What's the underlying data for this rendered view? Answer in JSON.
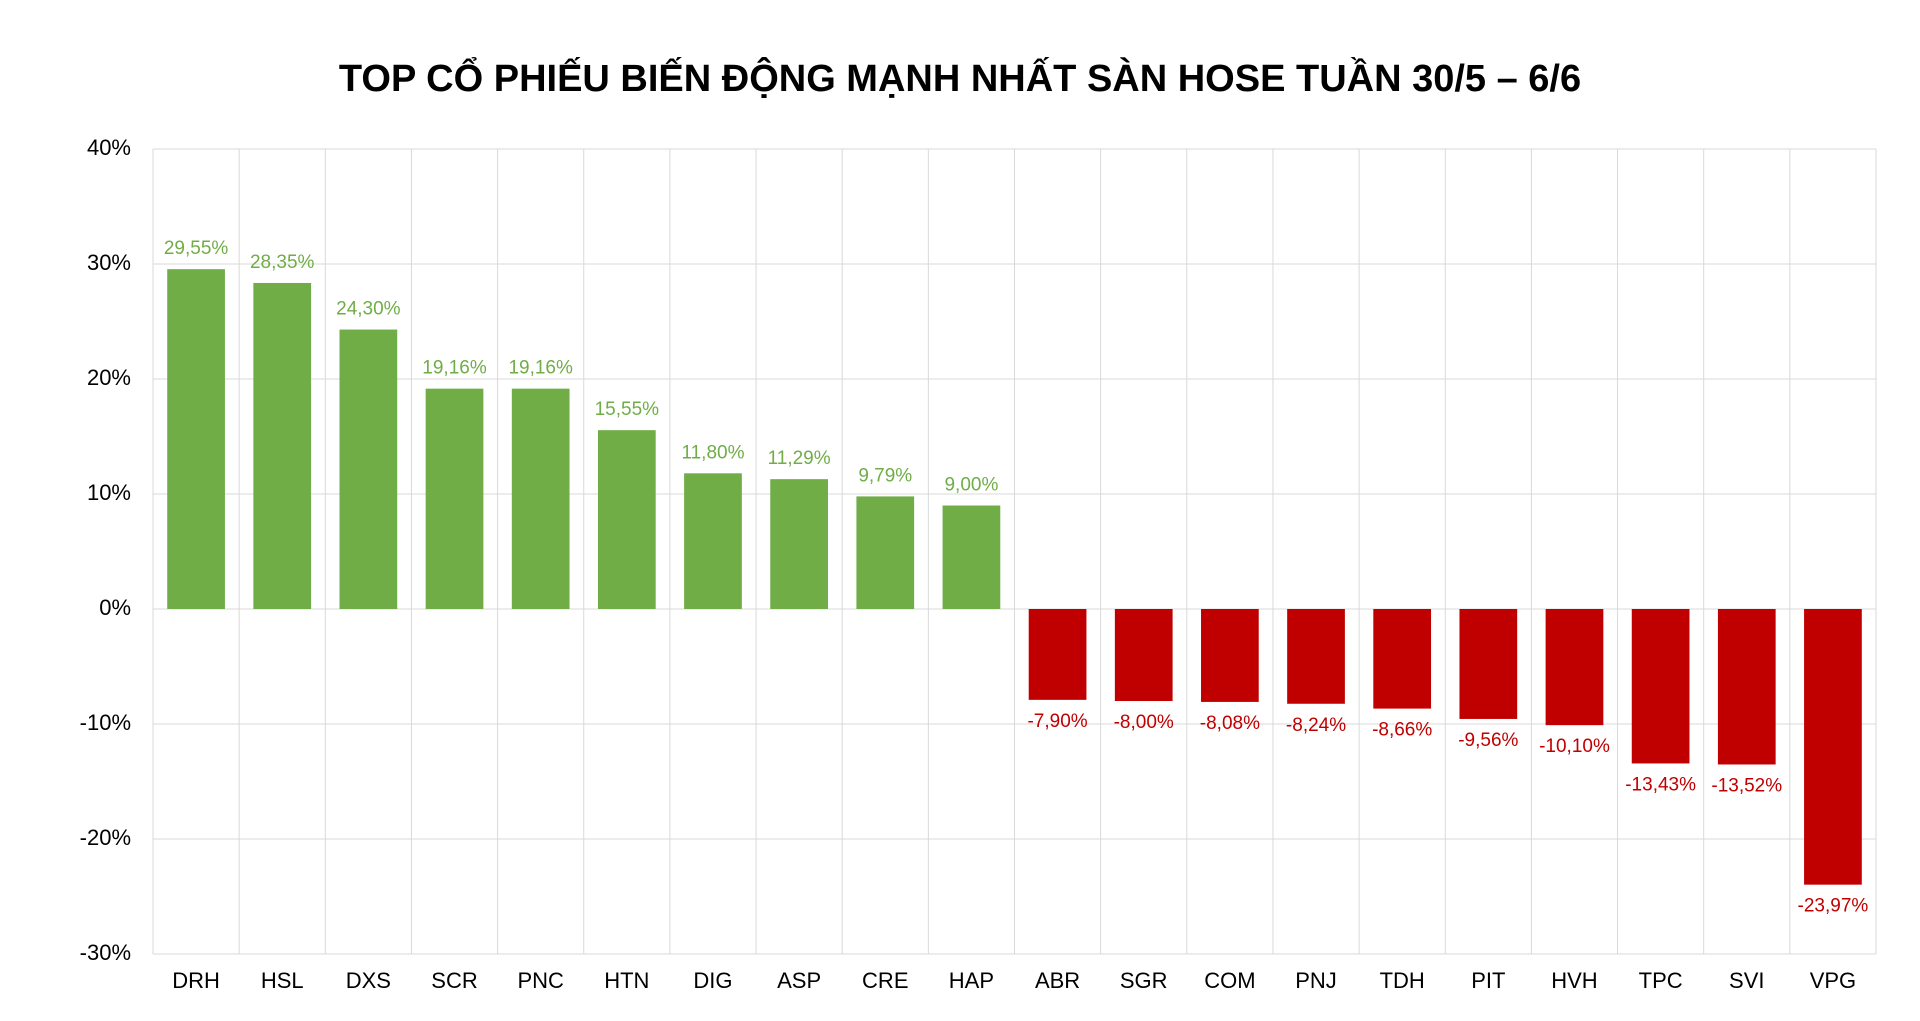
{
  "chart_data": {
    "type": "bar",
    "title": "TOP CỔ PHIẾU BIẾN ĐỘNG MẠNH NHẤT SÀN HOSE TUẦN 30/5 – 6/6",
    "categories": [
      "DRH",
      "HSL",
      "DXS",
      "SCR",
      "PNC",
      "HTN",
      "DIG",
      "ASP",
      "CRE",
      "HAP",
      "ABR",
      "SGR",
      "COM",
      "PNJ",
      "TDH",
      "PIT",
      "HVH",
      "TPC",
      "SVI",
      "VPG"
    ],
    "values": [
      29.55,
      28.35,
      24.3,
      19.16,
      19.16,
      15.55,
      11.8,
      11.29,
      9.79,
      9.0,
      -7.9,
      -8.0,
      -8.08,
      -8.24,
      -8.66,
      -9.56,
      -10.1,
      -13.43,
      -13.52,
      -23.97
    ],
    "value_labels": [
      "29,55%",
      "28,35%",
      "24,30%",
      "19,16%",
      "19,16%",
      "15,55%",
      "11,80%",
      "11,29%",
      "9,79%",
      "9,00%",
      "-7,90%",
      "-8,00%",
      "-8,08%",
      "-8,24%",
      "-8,66%",
      "-9,56%",
      "-10,10%",
      "-13,43%",
      "-13,52%",
      "-23,97%"
    ],
    "positive_color": "#70ad47",
    "negative_color": "#c00000",
    "ylim": [
      -30,
      40
    ],
    "yticks": [
      {
        "value": -30,
        "label": "-30%"
      },
      {
        "value": -20,
        "label": "-20%"
      },
      {
        "value": -10,
        "label": "-10%"
      },
      {
        "value": 0,
        "label": "0%"
      },
      {
        "value": 10,
        "label": "10%"
      },
      {
        "value": 20,
        "label": "20%"
      },
      {
        "value": 30,
        "label": "30%"
      },
      {
        "value": 40,
        "label": "40%"
      }
    ],
    "grid": true
  }
}
